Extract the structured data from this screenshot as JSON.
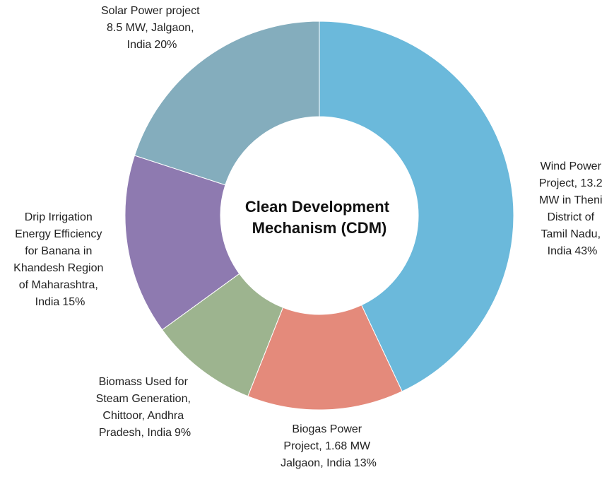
{
  "chart_data": {
    "type": "donut",
    "title": "Clean Development Mechanism (CDM)",
    "categories": [
      "Wind Power Project, 13.2 MW in Theni District of Tamil Nadu, India",
      "Biogas Power Project, 1.68 MW Jalgaon, India",
      "Biomass Used for Steam Generation, Chittoor, Andhra Pradesh, India",
      "Drip Irrigation Energy Efficiency for Banana in Khandesh Region of Maharashtra, India",
      "Solar Power project 8.5 MW, Jalgaon, India"
    ],
    "values": [
      43,
      13,
      9,
      15,
      20
    ],
    "value_labels": [
      "43%",
      "13%",
      "9%",
      "15%",
      "20%"
    ],
    "colors": [
      "#6bb9db",
      "#e48a7b",
      "#9db48f",
      "#8e7ab0",
      "#84adbd"
    ]
  }
}
